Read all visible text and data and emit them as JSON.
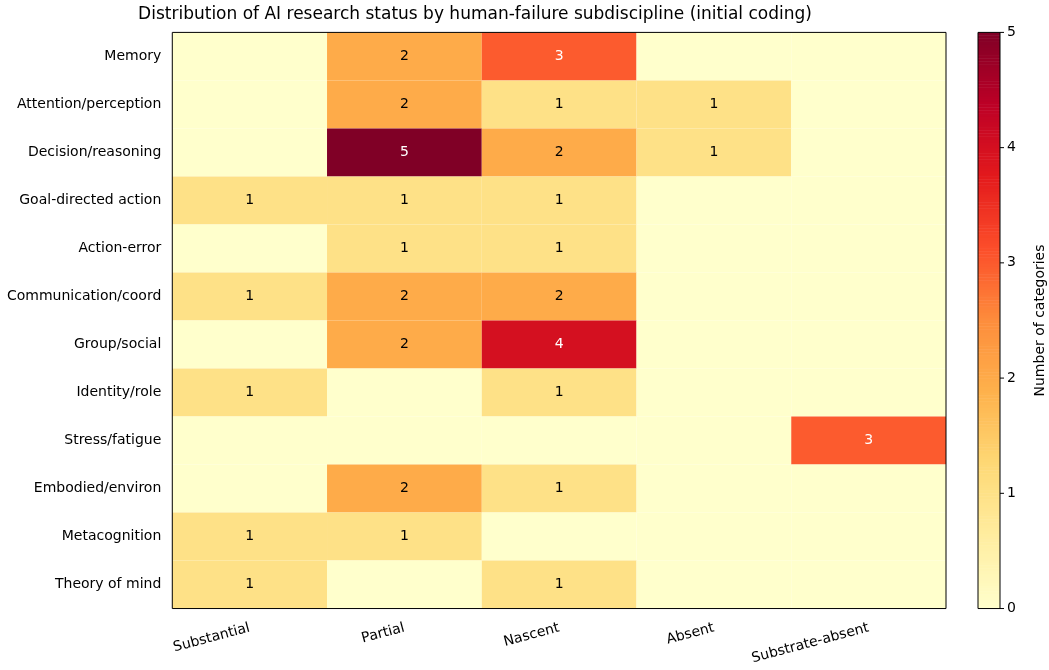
{
  "chart_data": {
    "type": "heatmap",
    "title": "Distribution of AI research status by human-failure subdiscipline (initial coding)",
    "categories": [
      "Substantial",
      "Partial",
      "Nascent",
      "Absent",
      "Substrate-absent"
    ],
    "y_categories": [
      "Memory",
      "Attention/perception",
      "Decision/reasoning",
      "Goal-directed action",
      "Action-error",
      "Communication/coord",
      "Group/social",
      "Identity/role",
      "Stress/fatigue",
      "Embodied/environ",
      "Metacognition",
      "Theory of mind"
    ],
    "cells": [
      [
        0,
        2,
        3,
        0,
        0
      ],
      [
        0,
        2,
        1,
        1,
        0
      ],
      [
        0,
        5,
        2,
        1,
        0
      ],
      [
        1,
        1,
        1,
        0,
        0
      ],
      [
        0,
        1,
        1,
        0,
        0
      ],
      [
        1,
        2,
        2,
        0,
        0
      ],
      [
        0,
        2,
        4,
        0,
        0
      ],
      [
        1,
        0,
        1,
        0,
        0
      ],
      [
        0,
        0,
        0,
        0,
        3
      ],
      [
        0,
        2,
        1,
        0,
        0
      ],
      [
        1,
        1,
        0,
        0,
        0
      ],
      [
        1,
        0,
        1,
        0,
        0
      ]
    ],
    "cell_labels": [
      [
        null,
        "2",
        "3",
        null,
        null
      ],
      [
        null,
        "2",
        "1",
        "1",
        null
      ],
      [
        null,
        "5",
        "2",
        "1",
        null
      ],
      [
        "1",
        "1",
        "1",
        null,
        null
      ],
      [
        null,
        "1",
        "1",
        null,
        null
      ],
      [
        "1",
        "2",
        "2",
        null,
        null
      ],
      [
        null,
        "2",
        "4",
        null,
        null
      ],
      [
        "1",
        null,
        "1",
        null,
        null
      ],
      [
        null,
        null,
        null,
        null,
        "3"
      ],
      [
        null,
        "2",
        "1",
        null,
        null
      ],
      [
        "1",
        "1",
        null,
        null,
        null
      ],
      [
        "1",
        null,
        "1",
        null,
        null
      ]
    ],
    "clim": [
      0,
      5
    ],
    "cticks": [
      0,
      1,
      2,
      3,
      4,
      5
    ],
    "clabel": "Number of categories"
  }
}
